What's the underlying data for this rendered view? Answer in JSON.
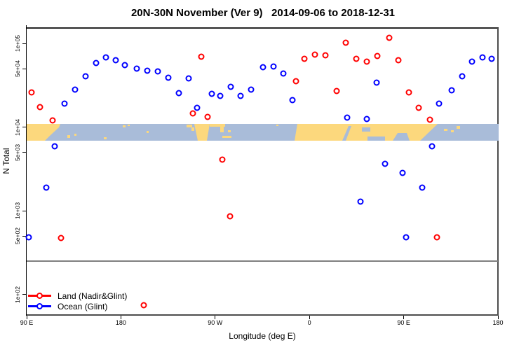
{
  "title": "20N-30N November (Ver 9)   2014-09-06 to 2018-12-31",
  "axes": {
    "y_label": "N Total",
    "x_label": "Longitude (deg E)",
    "y_ticks": [
      {
        "label": "1e+05",
        "value": 100000
      },
      {
        "label": "5e+04",
        "value": 50000
      },
      {
        "label": "1e+04",
        "value": 10000
      },
      {
        "label": "5e+03",
        "value": 5000
      },
      {
        "label": "1e+03",
        "value": 1000
      },
      {
        "label": "5e+02",
        "value": 500
      },
      {
        "label": "1e+02",
        "value": 100
      }
    ],
    "x_ticks": [
      {
        "label": "90 E",
        "axis_deg": 90
      },
      {
        "label": "180",
        "axis_deg": 180
      },
      {
        "label": "90 W",
        "axis_deg": 270
      },
      {
        "label": "0",
        "axis_deg": 360
      },
      {
        "label": "90 E",
        "axis_deg": 450
      },
      {
        "label": "180",
        "axis_deg": 540
      }
    ]
  },
  "legend": [
    {
      "label": "Land (Nadir&Glint)",
      "color": "#ff0000"
    },
    {
      "label": "Ocean (Glint)",
      "color": "#0000ff"
    }
  ],
  "chart_data": {
    "type": "scatter",
    "title": "20N-30N November (Ver 9)   2014-09-06 to 2018-12-31",
    "xlabel": "Longitude (deg E)",
    "ylabel": "N Total",
    "y_scale": "log",
    "ylim": [
      60,
      150000
    ],
    "xlim_axis_deg": [
      90,
      540
    ],
    "x_axis_note": "x axis spans 450 deg of longitude starting at 90E: 90E -> 180 -> 90W -> 0 -> 90E -> 180",
    "grid": false,
    "legend_position": "bottom-left",
    "marker": "open-circle",
    "reference_line": {
      "orientation": "horizontal",
      "value": 250,
      "color": "#7f7f7f"
    },
    "map_strip": {
      "center_value": 10000,
      "description": "20N-30N latitude band world-map strip (tan = land, light blue = ocean)"
    },
    "series": [
      {
        "name": "Land (Nadir&Glint)",
        "color": "#ff0000",
        "points": [
          [
            95,
            26000
          ],
          [
            103,
            17300
          ],
          [
            115,
            12000
          ],
          [
            123,
            474
          ],
          [
            202,
            75
          ],
          [
            249,
            14600
          ],
          [
            257,
            70000
          ],
          [
            263,
            13200
          ],
          [
            277,
            4100
          ],
          [
            284,
            860
          ],
          [
            347,
            35400
          ],
          [
            355,
            65000
          ],
          [
            365,
            73500
          ],
          [
            375,
            72000
          ],
          [
            386,
            27000
          ],
          [
            395,
            102000
          ],
          [
            405,
            65000
          ],
          [
            415,
            60600
          ],
          [
            425,
            70800
          ],
          [
            436,
            117000
          ],
          [
            445,
            63500
          ],
          [
            455,
            26000
          ],
          [
            464,
            17000
          ],
          [
            475,
            12300
          ],
          [
            482,
            483
          ]
        ]
      },
      {
        "name": "Ocean (Glint)",
        "color": "#0000ff",
        "points": [
          [
            92,
            483
          ],
          [
            109,
            1900
          ],
          [
            117,
            5900
          ],
          [
            126,
            19100
          ],
          [
            136,
            28100
          ],
          [
            146,
            40400
          ],
          [
            156,
            58300
          ],
          [
            166,
            67900
          ],
          [
            175,
            63400
          ],
          [
            184,
            55000
          ],
          [
            195,
            49800
          ],
          [
            205,
            47100
          ],
          [
            215,
            46200
          ],
          [
            225,
            38800
          ],
          [
            235,
            25500
          ],
          [
            245,
            38100
          ],
          [
            253,
            17000
          ],
          [
            267,
            25100
          ],
          [
            275,
            23700
          ],
          [
            285,
            30200
          ],
          [
            294,
            23700
          ],
          [
            304,
            28000
          ],
          [
            316,
            51800
          ],
          [
            326,
            52800
          ],
          [
            335,
            43600
          ],
          [
            344,
            20900
          ],
          [
            396,
            13000
          ],
          [
            409,
            1290
          ],
          [
            415,
            12500
          ],
          [
            424,
            34000
          ],
          [
            432,
            3650
          ],
          [
            449,
            2850
          ],
          [
            452,
            483
          ],
          [
            468,
            1900
          ],
          [
            477,
            5900
          ],
          [
            484,
            19100
          ],
          [
            496,
            27500
          ],
          [
            506,
            40400
          ],
          [
            515,
            60600
          ],
          [
            525,
            67900
          ],
          [
            534,
            65500
          ]
        ]
      }
    ]
  },
  "map_band": {
    "ocean_color": "#a9bcd9",
    "land_color": "#fcd87d",
    "land_paths": [
      "M0,0 L48,0 L46,5 L33,17 L26,24 L0,24 Z",
      "M58,16 h4 v4 h-4 Z",
      "M68,14 h3 v3 h-3 Z",
      "M110,19 h4 v3 h-4 Z",
      "M137,2 h4 v3 h-4 Z",
      "M144,1 h3 v2 h-3 Z",
      "M171,10 h3 v3 h-3 Z",
      "M228,1 h8 v4 h-8 Z",
      "M235,5 h4 v5 h-4 Z",
      "M239,0 L261,0 L257,24 L244,24 Z",
      "M261,0 h22 v4 h-22 Z",
      "M276,3 h5 v9 h-5 Z",
      "M279,17 h13 v3 h-13 Z",
      "M287,9 h4 v3 h-4 Z",
      "M356,1 h3 v2 h-3 Z",
      "M386,0 L586,0 L561,24 L382,24 Z",
      "M595,7 h5 v3 h-5 Z",
      "M605,9 h4 v3 h-4 Z",
      "M613,3 h5 v4 h-5 Z"
    ],
    "water_overlay_paths": [
      "M450,24 L459,3 L463,3 L455,24 Z",
      "M478,5 h12 v6 h-12 Z",
      "M486,18 h25 v6 h-25 Z",
      "M522,24 L529,13 L542,13 L546,24 Z"
    ]
  }
}
